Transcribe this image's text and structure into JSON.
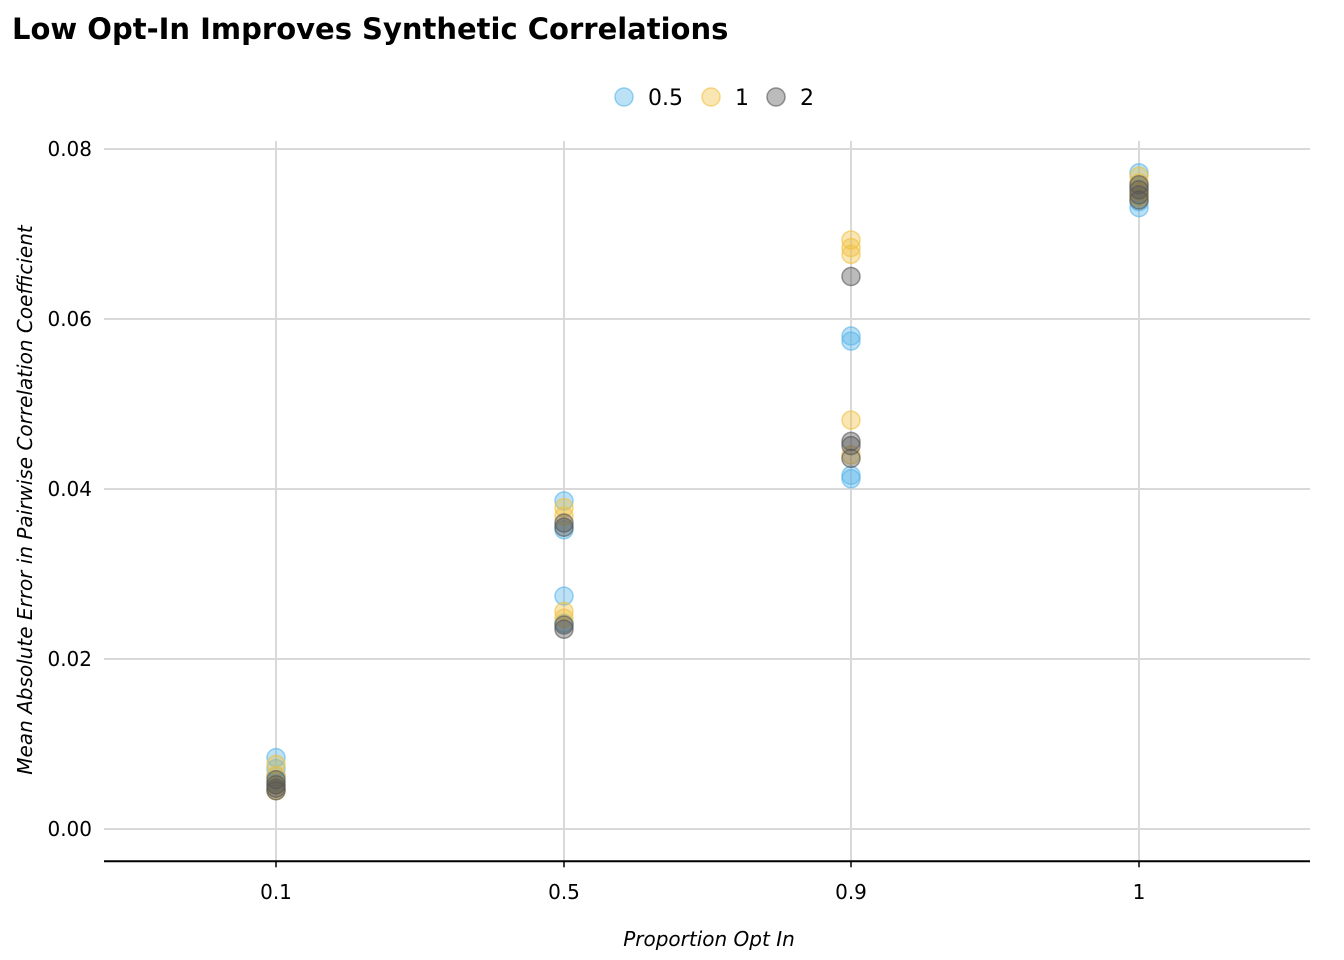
{
  "chart_data": {
    "type": "scatter",
    "title": "Low Opt-In Improves Synthetic Correlations",
    "xlabel": "Proportion Opt In",
    "ylabel": "Mean Absolute Error in Pairwise Correlation Coefficient",
    "x_categories": [
      "0.1",
      "0.5",
      "0.9",
      "1"
    ],
    "ylim": [
      -0.0038,
      0.081
    ],
    "yticks": [
      0.0,
      0.02,
      0.04,
      0.06,
      0.08
    ],
    "ytick_labels": [
      "0.00",
      "0.02",
      "0.04",
      "0.06",
      "0.08"
    ],
    "grid": true,
    "legend_position": "top",
    "series": [
      {
        "name": "0.5",
        "color": "#56B4E9",
        "points": [
          {
            "x": "0.1",
            "y": 0.0084
          },
          {
            "x": "0.1",
            "y": 0.0071
          },
          {
            "x": "0.1",
            "y": 0.0062
          },
          {
            "x": "0.1",
            "y": 0.0055
          },
          {
            "x": "0.5",
            "y": 0.0386
          },
          {
            "x": "0.5",
            "y": 0.0352
          },
          {
            "x": "0.5",
            "y": 0.0274
          },
          {
            "x": "0.5",
            "y": 0.0242
          },
          {
            "x": "0.9",
            "y": 0.058
          },
          {
            "x": "0.9",
            "y": 0.0574
          },
          {
            "x": "0.9",
            "y": 0.0416
          },
          {
            "x": "0.9",
            "y": 0.0412
          },
          {
            "x": "1",
            "y": 0.0772
          },
          {
            "x": "1",
            "y": 0.0755
          },
          {
            "x": "1",
            "y": 0.0738
          },
          {
            "x": "1",
            "y": 0.0731
          }
        ]
      },
      {
        "name": "1",
        "color": "#F0C040",
        "points": [
          {
            "x": "0.1",
            "y": 0.0076
          },
          {
            "x": "0.1",
            "y": 0.0063
          },
          {
            "x": "0.1",
            "y": 0.0052
          },
          {
            "x": "0.1",
            "y": 0.0045
          },
          {
            "x": "0.5",
            "y": 0.0378
          },
          {
            "x": "0.5",
            "y": 0.0368
          },
          {
            "x": "0.5",
            "y": 0.0256
          },
          {
            "x": "0.5",
            "y": 0.0248
          },
          {
            "x": "0.9",
            "y": 0.0693
          },
          {
            "x": "0.9",
            "y": 0.0684
          },
          {
            "x": "0.9",
            "y": 0.0676
          },
          {
            "x": "0.9",
            "y": 0.0481
          },
          {
            "x": "0.9",
            "y": 0.044
          },
          {
            "x": "1",
            "y": 0.0768
          },
          {
            "x": "1",
            "y": 0.076
          },
          {
            "x": "1",
            "y": 0.075
          },
          {
            "x": "1",
            "y": 0.0743
          }
        ]
      },
      {
        "name": "2",
        "color": "#555555",
        "points": [
          {
            "x": "0.1",
            "y": 0.0058
          },
          {
            "x": "0.1",
            "y": 0.0052
          },
          {
            "x": "0.1",
            "y": 0.0048
          },
          {
            "x": "0.1",
            "y": 0.0045
          },
          {
            "x": "0.5",
            "y": 0.036
          },
          {
            "x": "0.5",
            "y": 0.0355
          },
          {
            "x": "0.5",
            "y": 0.024
          },
          {
            "x": "0.5",
            "y": 0.0235
          },
          {
            "x": "0.9",
            "y": 0.065
          },
          {
            "x": "0.9",
            "y": 0.0456
          },
          {
            "x": "0.9",
            "y": 0.0451
          },
          {
            "x": "0.9",
            "y": 0.0436
          },
          {
            "x": "1",
            "y": 0.0758
          },
          {
            "x": "1",
            "y": 0.0752
          },
          {
            "x": "1",
            "y": 0.0746
          },
          {
            "x": "1",
            "y": 0.074
          }
        ]
      }
    ]
  }
}
